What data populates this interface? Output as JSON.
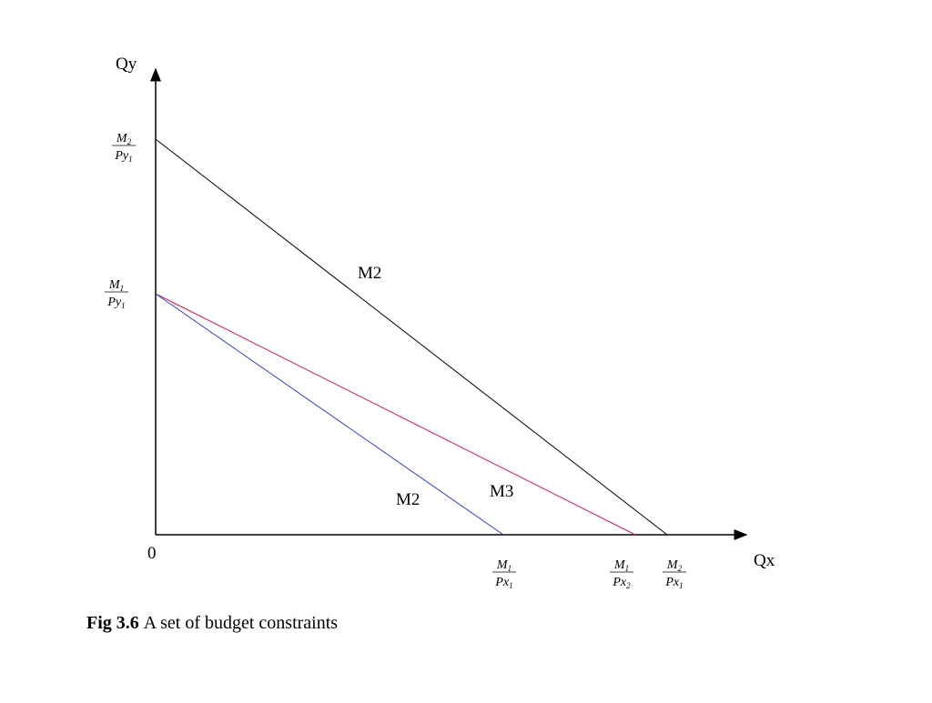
{
  "axes": {
    "y_label": "Qy",
    "x_label": "Qx",
    "origin": "0"
  },
  "y_ticks": [
    {
      "numerator": {
        "base": "M",
        "sub": "2"
      },
      "denominator": {
        "base": "Py",
        "sub": "1"
      }
    },
    {
      "numerator": {
        "base": "M",
        "sub": "1"
      },
      "denominator": {
        "base": "Py",
        "sub": "1"
      }
    }
  ],
  "x_ticks": [
    {
      "numerator": {
        "base": "M",
        "sub": "1"
      },
      "denominator": {
        "base": "Px",
        "sub": "1"
      }
    },
    {
      "numerator": {
        "base": "M",
        "sub": "1"
      },
      "denominator": {
        "base": "Px",
        "sub": "2"
      }
    },
    {
      "numerator": {
        "base": "M",
        "sub": "2"
      },
      "denominator": {
        "base": "Px",
        "sub": "1"
      }
    }
  ],
  "line_labels": [
    "M2",
    "M2",
    "M3"
  ],
  "caption": {
    "figure": "Fig 3.6",
    "text": "A set of budget constraints"
  }
}
